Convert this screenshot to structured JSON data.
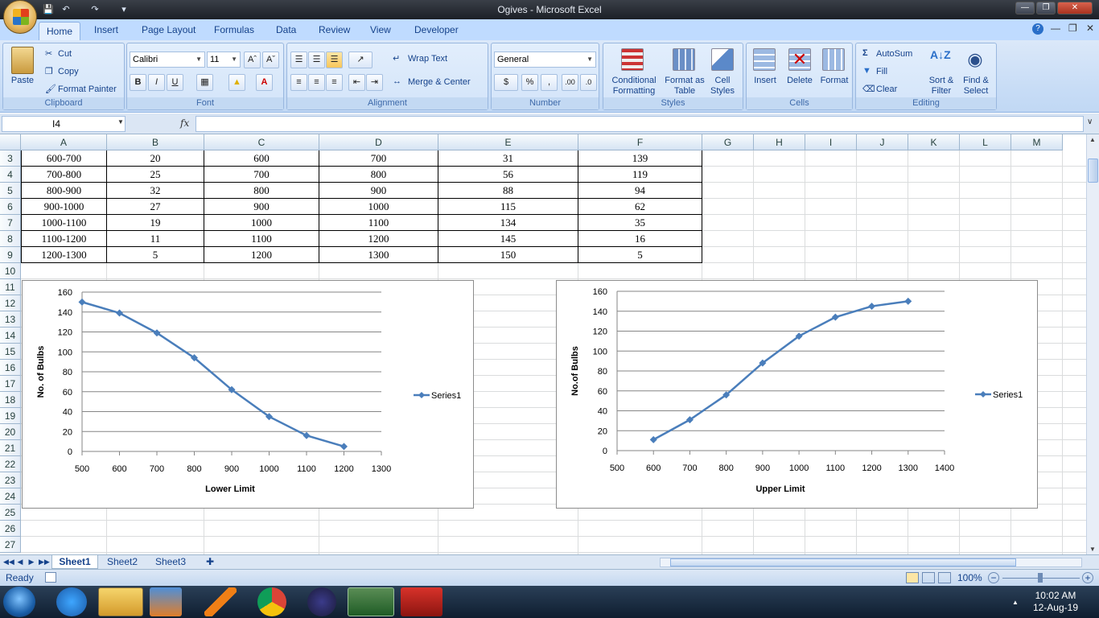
{
  "window": {
    "title": "Ogives - Microsoft Excel"
  },
  "ribbon": {
    "tabs": [
      "Home",
      "Insert",
      "Page Layout",
      "Formulas",
      "Data",
      "Review",
      "View",
      "Developer"
    ],
    "clipboard": {
      "paste": "Paste",
      "cut": "Cut",
      "copy": "Copy",
      "format_painter": "Format Painter",
      "label": "Clipboard"
    },
    "font": {
      "name": "Calibri",
      "size": "11",
      "label": "Font",
      "bold": "B",
      "italic": "I",
      "underline": "U"
    },
    "alignment": {
      "wrap_text": "Wrap Text",
      "merge_center": "Merge & Center",
      "label": "Alignment"
    },
    "number": {
      "format": "General",
      "label": "Number",
      "currency": "$",
      "percent": "%",
      "comma": ","
    },
    "styles": {
      "conditional": "Conditional Formatting",
      "format_table": "Format as Table",
      "cell_styles": "Cell Styles",
      "label": "Styles"
    },
    "cells": {
      "insert": "Insert",
      "delete": "Delete",
      "format": "Format",
      "label": "Cells"
    },
    "editing": {
      "autosum": "AutoSum",
      "fill": "Fill",
      "clear": "Clear",
      "sort_filter": "Sort & Filter",
      "find_select": "Find & Select",
      "label": "Editing"
    }
  },
  "formula_bar": {
    "name_box": "I4",
    "fx": "fx",
    "formula": ""
  },
  "columns": [
    "A",
    "B",
    "C",
    "D",
    "E",
    "F",
    "G",
    "H",
    "I",
    "J",
    "K",
    "L",
    "M"
  ],
  "rows": [
    "3",
    "4",
    "5",
    "6",
    "7",
    "8",
    "9",
    "10",
    "11",
    "12",
    "13",
    "14",
    "15",
    "16",
    "17",
    "18",
    "19",
    "20",
    "21",
    "22",
    "23",
    "24",
    "25",
    "26",
    "27"
  ],
  "table": [
    [
      "600-700",
      "20",
      "600",
      "700",
      "31",
      "139"
    ],
    [
      "700-800",
      "25",
      "700",
      "800",
      "56",
      "119"
    ],
    [
      "800-900",
      "32",
      "800",
      "900",
      "88",
      "94"
    ],
    [
      "900-1000",
      "27",
      "900",
      "1000",
      "115",
      "62"
    ],
    [
      "1000-1100",
      "19",
      "1000",
      "1100",
      "134",
      "35"
    ],
    [
      "1100-1200",
      "11",
      "1100",
      "1200",
      "145",
      "16"
    ],
    [
      "1200-1300",
      "5",
      "1200",
      "1300",
      "150",
      "5"
    ]
  ],
  "chart_data": [
    {
      "type": "line",
      "x": [
        500,
        600,
        700,
        800,
        900,
        1000,
        1100,
        1200
      ],
      "series": [
        {
          "name": "Series1",
          "values": [
            150,
            139,
            119,
            94,
            62,
            35,
            16,
            5
          ]
        }
      ],
      "xlabel": "Lower Limit",
      "ylabel": "No. of Bulbs",
      "xlim": [
        500,
        1300
      ],
      "ylim": [
        0,
        160
      ],
      "xticks": [
        "500",
        "600",
        "700",
        "800",
        "900",
        "1000",
        "1100",
        "1200",
        "1300"
      ],
      "yticks": [
        "0",
        "20",
        "40",
        "60",
        "80",
        "100",
        "120",
        "140",
        "160"
      ],
      "grid": true,
      "legend": "right",
      "color": "#4a7ebb"
    },
    {
      "type": "line",
      "x": [
        600,
        700,
        800,
        900,
        1000,
        1100,
        1200,
        1300
      ],
      "series": [
        {
          "name": "Series1",
          "values": [
            11,
            31,
            56,
            88,
            115,
            134,
            145,
            150
          ]
        }
      ],
      "xlabel": "Upper Limit",
      "ylabel": "No.of Bulbs",
      "xlim": [
        500,
        1400
      ],
      "ylim": [
        0,
        160
      ],
      "xticks": [
        "500",
        "600",
        "700",
        "800",
        "900",
        "1000",
        "1100",
        "1200",
        "1300",
        "1400"
      ],
      "yticks": [
        "0",
        "20",
        "40",
        "60",
        "80",
        "100",
        "120",
        "140",
        "160"
      ],
      "grid": true,
      "legend": "right",
      "color": "#4a7ebb"
    }
  ],
  "sheets": [
    "Sheet1",
    "Sheet2",
    "Sheet3"
  ],
  "status": {
    "ready": "Ready",
    "zoom": "100%"
  },
  "taskbar": {
    "time": "10:02 AM",
    "date": "12-Aug-19"
  }
}
